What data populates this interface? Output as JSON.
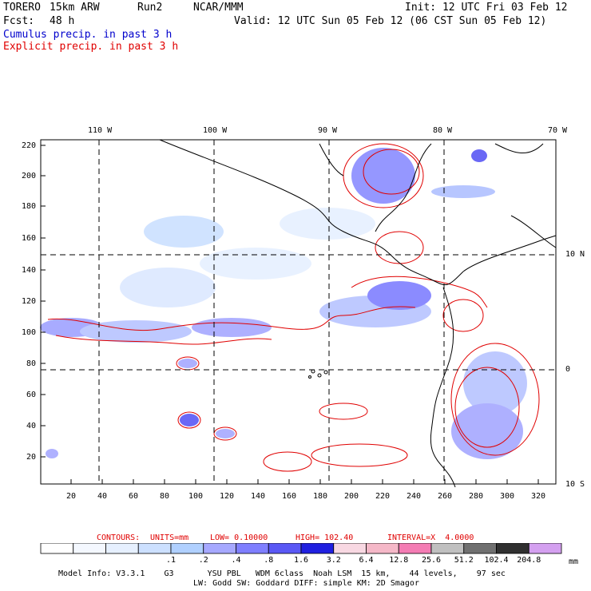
{
  "header": {
    "model": "TORERO",
    "resolution": "15km ARW",
    "run": "Run2",
    "org": "NCAR/MMM",
    "fcst_label": "Fcst:",
    "fcst_value": "48 h",
    "init": "Init: 12 UTC Fri 03 Feb 12",
    "valid": "Valid: 12 UTC Sun 05 Feb 12 (06 CST Sun 05 Feb 12)",
    "line_blue": "Cumulus precip. in past 3 h",
    "line_red": "Explicit precip. in past 3 h"
  },
  "map": {
    "top_lon_labels": [
      "110 W",
      "100 W",
      "90 W",
      "80 W",
      "70 W"
    ],
    "right_lat_labels": [
      "10 N",
      "0",
      "10 S"
    ],
    "left_ticks": [
      "220",
      "200",
      "180",
      "160",
      "140",
      "120",
      "100",
      "80",
      "60",
      "40",
      "20"
    ],
    "bottom_ticks": [
      "20",
      "40",
      "60",
      "80",
      "100",
      "120",
      "140",
      "160",
      "180",
      "200",
      "220",
      "240",
      "260",
      "280",
      "300",
      "320"
    ]
  },
  "contours_line": {
    "contours": "CONTOURS:",
    "units": "UNITS=mm",
    "low": "LOW= 0.10000",
    "high": "HIGH= 102.40",
    "interval": "INTERVAL=X  4.0000"
  },
  "colorbar": {
    "colors": [
      "#ffffff",
      "#f4f8ff",
      "#e6f0ff",
      "#cce0ff",
      "#b0d0ff",
      "#a6a8ff",
      "#7f7fff",
      "#5a58f5",
      "#2020e0",
      "#f8d8e2",
      "#f5b8c8",
      "#f47cb4",
      "#c0c0c0",
      "#707070",
      "#303030",
      "#d4a0f0"
    ],
    "labels": [
      ".1",
      ".2",
      ".4",
      ".8",
      "1.6",
      "3.2",
      "6.4",
      "12.8",
      "25.6",
      "51.2",
      "102.4",
      "204.8"
    ],
    "unit": "mm"
  },
  "footer": {
    "line1": "Model Info: V3.3.1    G3       YSU PBL   WDM 6class  Noah LSM  15 km,    44 levels,    97 sec",
    "line2": "LW: Godd SW: Goddard DIFF: simple KM: 2D Smagor"
  }
}
